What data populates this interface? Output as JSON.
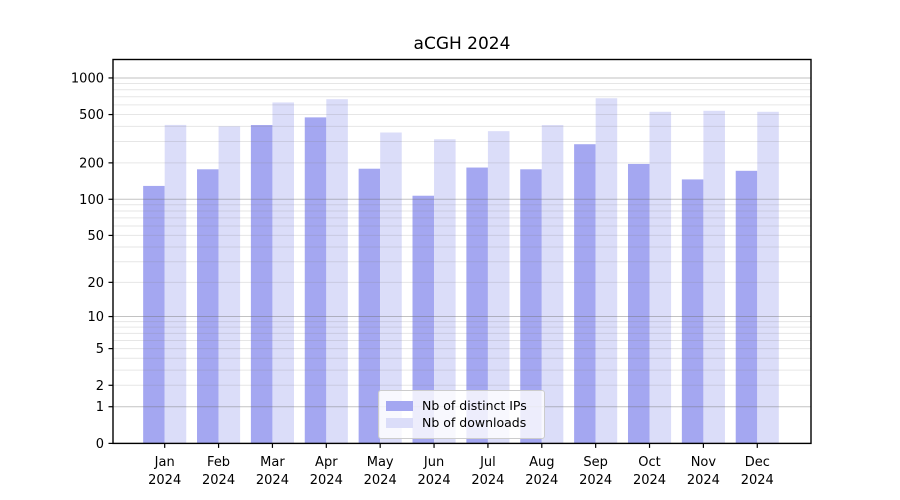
{
  "chart_data": {
    "type": "bar",
    "title": "aCGH 2024",
    "categories": [
      "Jan",
      "Feb",
      "Mar",
      "Apr",
      "May",
      "Jun",
      "Jul",
      "Aug",
      "Sep",
      "Oct",
      "Nov",
      "Dec"
    ],
    "category_year": "2024",
    "series": [
      {
        "name": "Nb of distinct IPs",
        "color": "#a4a7f1",
        "values": [
          129,
          177,
          410,
          474,
          179,
          107,
          183,
          177,
          285,
          196,
          146,
          172
        ]
      },
      {
        "name": "Nb of downloads",
        "color": "#dbddf9",
        "values": [
          411,
          400,
          629,
          669,
          356,
          313,
          365,
          410,
          681,
          527,
          537,
          527
        ]
      }
    ],
    "xlabel": "",
    "ylabel": "",
    "y_ticks": [
      1000,
      500,
      200,
      100,
      50,
      20,
      10,
      5,
      2,
      1,
      0
    ],
    "y_scale": "log10(value+1)",
    "ylim": [
      0,
      1330
    ],
    "grid": true,
    "legend_position": "inside-bottom-center",
    "axis_color": "#000000",
    "grid_major_color": "#c3c3c3",
    "grid_minor_color": "#e4e4e4"
  }
}
